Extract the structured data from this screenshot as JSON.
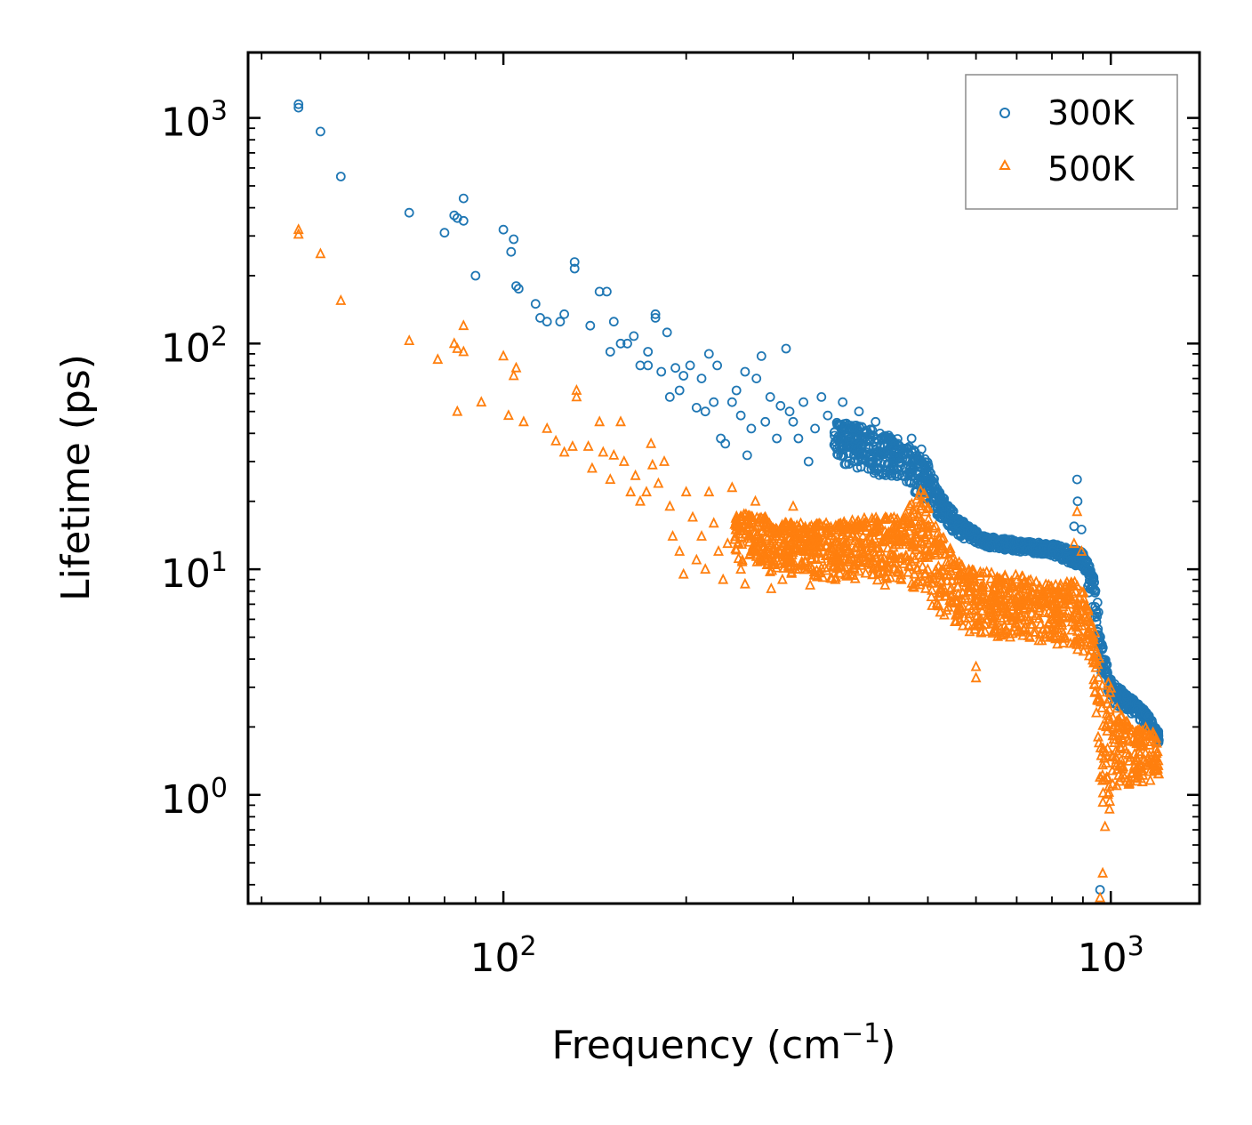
{
  "chart_data": {
    "type": "scatter",
    "title": "",
    "xlabel": "Frequency (cm",
    "xlabel_sup": "−1",
    "xlabel_end": ")",
    "ylabel": "Lifetime (ps)",
    "xscale": "log",
    "yscale": "log",
    "xlim": [
      38,
      1400
    ],
    "ylim": [
      0.33,
      1950
    ],
    "x_ticks": [
      {
        "value": 100,
        "base": "10",
        "exp": "2"
      },
      {
        "value": 1000,
        "base": "10",
        "exp": "3"
      }
    ],
    "y_ticks": [
      {
        "value": 1,
        "base": "10",
        "exp": "0"
      },
      {
        "value": 10,
        "base": "10",
        "exp": "1"
      },
      {
        "value": 100,
        "base": "10",
        "exp": "2"
      },
      {
        "value": 1000,
        "base": "10",
        "exp": "3"
      }
    ],
    "legend": {
      "position": "top-right"
    },
    "series": [
      {
        "name": "300K",
        "marker": "circle",
        "color": "#1f77b4",
        "points": [
          [
            46,
            1150
          ],
          [
            46,
            1110
          ],
          [
            50,
            870
          ],
          [
            54,
            550
          ],
          [
            70,
            380
          ],
          [
            80,
            310
          ],
          [
            83,
            370
          ],
          [
            84,
            360
          ],
          [
            86,
            440
          ],
          [
            86,
            350
          ],
          [
            90,
            200
          ],
          [
            100,
            320
          ],
          [
            103,
            255
          ],
          [
            104,
            290
          ],
          [
            105,
            180
          ],
          [
            106,
            175
          ],
          [
            113,
            150
          ],
          [
            115,
            130
          ],
          [
            118,
            125
          ],
          [
            124,
            125
          ],
          [
            126,
            135
          ],
          [
            131,
            230
          ],
          [
            131,
            215
          ],
          [
            139,
            120
          ],
          [
            144,
            170
          ],
          [
            148,
            170
          ],
          [
            150,
            92
          ],
          [
            152,
            125
          ],
          [
            156,
            100
          ],
          [
            160,
            100
          ],
          [
            164,
            108
          ],
          [
            168,
            80
          ],
          [
            173,
            80
          ],
          [
            173,
            92
          ],
          [
            178,
            135
          ],
          [
            178,
            130
          ],
          [
            182,
            75
          ],
          [
            186,
            112
          ],
          [
            188,
            58
          ],
          [
            192,
            78
          ],
          [
            195,
            62
          ],
          [
            198,
            72
          ],
          [
            203,
            80
          ],
          [
            208,
            52
          ],
          [
            212,
            70
          ],
          [
            215,
            50
          ],
          [
            218,
            90
          ],
          [
            222,
            55
          ],
          [
            225,
            80
          ],
          [
            228,
            38
          ],
          [
            232,
            36
          ],
          [
            238,
            55
          ],
          [
            242,
            62
          ],
          [
            246,
            48
          ],
          [
            250,
            75
          ],
          [
            252,
            32
          ],
          [
            256,
            42
          ],
          [
            261,
            70
          ],
          [
            266,
            88
          ],
          [
            270,
            45
          ],
          [
            275,
            58
          ],
          [
            282,
            38
          ],
          [
            286,
            53
          ],
          [
            292,
            95
          ],
          [
            296,
            50
          ],
          [
            300,
            45
          ],
          [
            306,
            38
          ],
          [
            312,
            55
          ],
          [
            318,
            30
          ],
          [
            326,
            42
          ],
          [
            334,
            58
          ],
          [
            342,
            48
          ],
          [
            352,
            35
          ],
          [
            362,
            55
          ],
          [
            372,
            38
          ],
          [
            385,
            50
          ],
          [
            396,
            33
          ],
          [
            410,
            45
          ],
          [
            428,
            38
          ],
          [
            446,
            36
          ],
          [
            470,
            38
          ],
          [
            488,
            34
          ]
        ],
        "dense_band": [
          [
            350,
            30,
            46
          ],
          [
            400,
            27,
            42
          ],
          [
            450,
            24,
            38
          ],
          [
            500,
            20,
            30
          ],
          [
            520,
            17,
            23
          ],
          [
            560,
            14,
            17
          ],
          [
            620,
            12.5,
            14
          ],
          [
            700,
            12,
            13.5
          ],
          [
            800,
            11.5,
            13
          ],
          [
            900,
            10,
            12
          ],
          [
            940,
            6,
            9.5
          ],
          [
            965,
            3.2,
            5
          ],
          [
            990,
            2.8,
            3.6
          ],
          [
            1020,
            2.4,
            3.1
          ],
          [
            1060,
            2.4,
            2.8
          ],
          [
            1100,
            2.2,
            2.6
          ],
          [
            1150,
            2.0,
            2.3
          ],
          [
            1200,
            1.7,
            1.9
          ]
        ],
        "peaks": [
          [
            880,
            25
          ],
          [
            882,
            20
          ],
          [
            870,
            15.5
          ],
          [
            895,
            15
          ],
          [
            960,
            0.38
          ],
          [
            980,
            3.8
          ],
          [
            1200,
            1.75
          ]
        ]
      },
      {
        "name": "500K",
        "marker": "triangle",
        "color": "#ff7f0e",
        "points": [
          [
            46,
            320
          ],
          [
            46,
            305
          ],
          [
            50,
            250
          ],
          [
            54,
            155
          ],
          [
            70,
            103
          ],
          [
            78,
            85
          ],
          [
            83,
            100
          ],
          [
            84,
            95
          ],
          [
            86,
            120
          ],
          [
            86,
            92
          ],
          [
            84,
            50
          ],
          [
            92,
            55
          ],
          [
            100,
            88
          ],
          [
            102,
            48
          ],
          [
            104,
            72
          ],
          [
            105,
            78
          ],
          [
            108,
            45
          ],
          [
            118,
            42
          ],
          [
            122,
            37
          ],
          [
            126,
            33
          ],
          [
            130,
            35
          ],
          [
            132,
            62
          ],
          [
            132,
            58
          ],
          [
            138,
            35
          ],
          [
            140,
            28
          ],
          [
            144,
            45
          ],
          [
            146,
            33
          ],
          [
            150,
            25
          ],
          [
            152,
            32
          ],
          [
            156,
            45
          ],
          [
            158,
            30
          ],
          [
            162,
            22
          ],
          [
            165,
            26
          ],
          [
            168,
            20
          ],
          [
            172,
            22
          ],
          [
            175,
            36
          ],
          [
            176,
            29
          ],
          [
            180,
            24
          ],
          [
            184,
            30
          ],
          [
            188,
            19
          ],
          [
            190,
            14
          ],
          [
            195,
            12
          ],
          [
            198,
            9.5
          ],
          [
            200,
            22
          ],
          [
            205,
            17
          ],
          [
            208,
            11
          ],
          [
            212,
            14
          ],
          [
            215,
            10
          ],
          [
            218,
            22
          ],
          [
            222,
            16
          ],
          [
            226,
            12
          ],
          [
            230,
            9
          ],
          [
            234,
            13
          ],
          [
            238,
            23
          ],
          [
            242,
            15
          ],
          [
            246,
            10
          ],
          [
            250,
            8.6
          ],
          [
            255,
            14
          ],
          [
            260,
            20
          ],
          [
            265,
            11
          ],
          [
            270,
            17
          ],
          [
            276,
            8.2
          ],
          [
            282,
            15
          ],
          [
            288,
            9
          ],
          [
            294,
            12
          ],
          [
            300,
            19
          ],
          [
            306,
            10
          ],
          [
            312,
            14
          ],
          [
            320,
            8.5
          ],
          [
            330,
            12
          ],
          [
            340,
            16
          ],
          [
            352,
            9
          ],
          [
            365,
            13
          ],
          [
            378,
            10
          ],
          [
            392,
            11
          ],
          [
            410,
            12.5
          ],
          [
            425,
            8.5
          ],
          [
            440,
            10
          ],
          [
            460,
            11.5
          ],
          [
            475,
            9.5
          ],
          [
            490,
            8.8
          ]
        ],
        "dense_band": [
          [
            240,
            10,
            18
          ],
          [
            300,
            9.5,
            16
          ],
          [
            350,
            9,
            16
          ],
          [
            400,
            9,
            17
          ],
          [
            450,
            8.5,
            17
          ],
          [
            490,
            7.5,
            23
          ],
          [
            520,
            6.5,
            15
          ],
          [
            560,
            5.5,
            11
          ],
          [
            600,
            5,
            10
          ],
          [
            650,
            5,
            9.5
          ],
          [
            700,
            4.9,
            9.5
          ],
          [
            760,
            4.8,
            9
          ],
          [
            820,
            4.6,
            8.5
          ],
          [
            870,
            4.5,
            9
          ],
          [
            900,
            4.2,
            8
          ],
          [
            930,
            3.8,
            6
          ],
          [
            950,
            2.0,
            5
          ],
          [
            965,
            0.9,
            3.5
          ],
          [
            975,
            0.6,
            2.5
          ],
          [
            990,
            0.8,
            3.2
          ],
          [
            1010,
            1.0,
            2.8
          ],
          [
            1040,
            1.0,
            2.3
          ],
          [
            1080,
            1.1,
            2.0
          ],
          [
            1120,
            1.1,
            2.0
          ],
          [
            1160,
            1.15,
            2.0
          ],
          [
            1200,
            1.2,
            1.7
          ]
        ],
        "peaks": [
          [
            880,
            18
          ],
          [
            870,
            13
          ],
          [
            895,
            12
          ],
          [
            960,
            0.35
          ],
          [
            970,
            0.45
          ],
          [
            600,
            3.3
          ],
          [
            600,
            3.7
          ]
        ]
      }
    ]
  }
}
